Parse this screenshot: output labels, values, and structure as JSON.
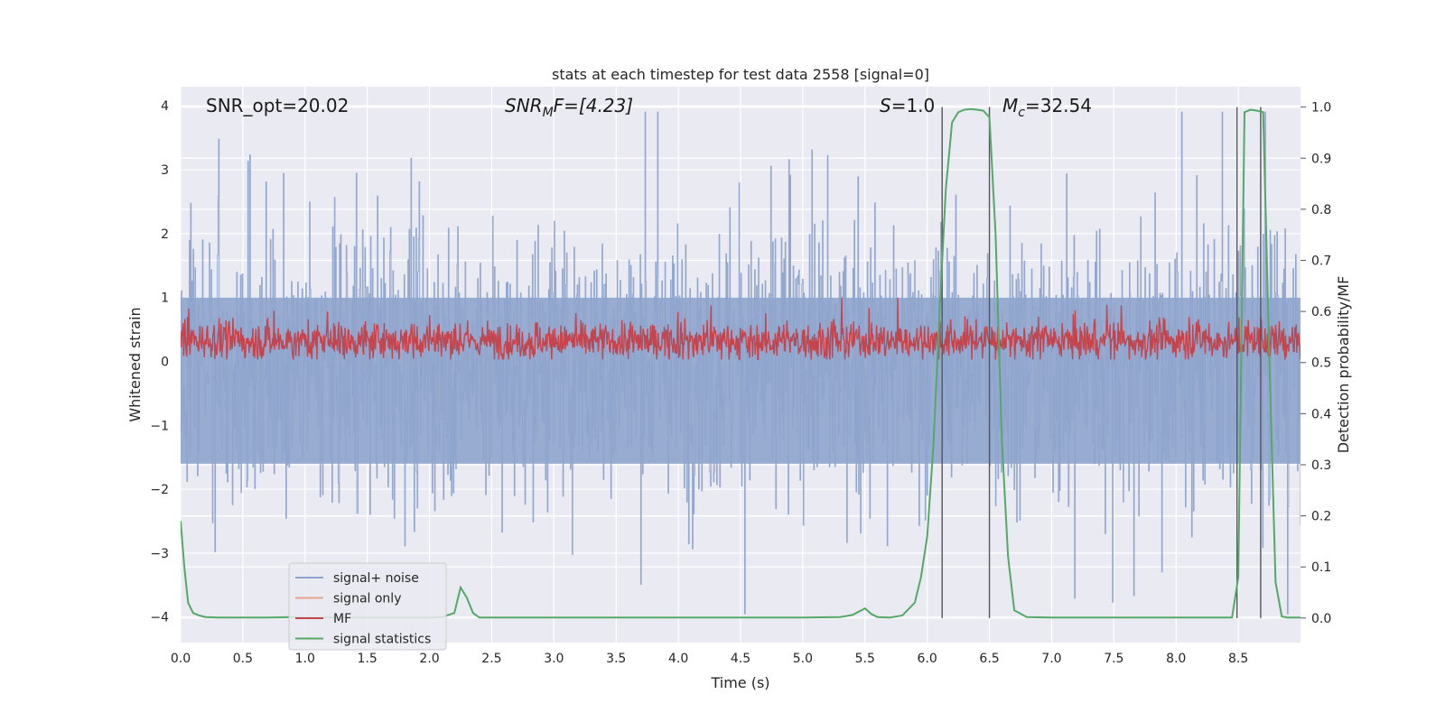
{
  "chart_data": {
    "type": "line",
    "title": "stats at each timestep for test data 2558 [signal=0]",
    "xlabel": "Time (s)",
    "ylabel_left": "Whitened strain",
    "ylabel_right": "Detection probability/MF",
    "xlim": [
      0,
      9
    ],
    "ylim_left": [
      -4.4,
      4.3
    ],
    "ylim_right": [
      -0.048,
      1.04
    ],
    "x_ticks": [
      "0.0",
      "0.5",
      "1.0",
      "1.5",
      "2.0",
      "2.5",
      "3.0",
      "3.5",
      "4.0",
      "4.5",
      "5.0",
      "5.5",
      "6.0",
      "6.5",
      "7.0",
      "7.5",
      "8.0",
      "8.5"
    ],
    "y_ticks_left": [
      "4",
      "3",
      "2",
      "1",
      "0",
      "−1",
      "−2",
      "−3",
      "−4"
    ],
    "y_ticks_right": [
      "1.0",
      "0.9",
      "0.8",
      "0.7",
      "0.6",
      "0.5",
      "0.4",
      "0.3",
      "0.2",
      "0.1",
      "0.0"
    ],
    "grid": true,
    "legend_position": "lower-left",
    "annotations": {
      "snr_opt": "SNR_opt=20.02",
      "snr_mf_main": "SNR",
      "snr_mf_sub": "M",
      "snr_mf_rest": "F=[4.23]",
      "s_main": "S",
      "s_rest": "=1.0",
      "mc_main": "M",
      "mc_sub": "c",
      "mc_rest": "=32.54"
    },
    "vertical_markers_x": [
      6.12,
      6.5,
      8.49,
      8.68
    ],
    "series": [
      {
        "name": "signal+ noise",
        "color": "#8fa4cc",
        "axis": "left",
        "amplitude_range": [
          -4.0,
          4.0
        ]
      },
      {
        "name": "signal only",
        "color": "#e8a28a",
        "axis": "left"
      },
      {
        "name": "MF",
        "color": "#c4454d",
        "axis": "left",
        "amplitude_range": [
          0.0,
          1.0
        ]
      },
      {
        "name": "signal statistics",
        "color": "#55a868",
        "axis": "right",
        "x": [
          0.0,
          0.03,
          0.06,
          0.1,
          0.15,
          0.2,
          0.3,
          0.5,
          0.7,
          0.9,
          1.0,
          1.5,
          2.0,
          2.1,
          2.2,
          2.25,
          2.3,
          2.35,
          2.4,
          2.5,
          3.0,
          4.0,
          5.0,
          5.3,
          5.4,
          5.5,
          5.55,
          5.6,
          5.7,
          5.8,
          5.9,
          5.95,
          6.0,
          6.05,
          6.1,
          6.15,
          6.2,
          6.25,
          6.3,
          6.35,
          6.4,
          6.45,
          6.5,
          6.55,
          6.6,
          6.65,
          6.7,
          6.8,
          7.0,
          8.0,
          8.45,
          8.5,
          8.55,
          8.6,
          8.65,
          8.7,
          8.75,
          8.8,
          8.85,
          8.9,
          9.0
        ],
        "values": [
          0.19,
          0.1,
          0.03,
          0.01,
          0.005,
          0.002,
          0.001,
          0.001,
          0.001,
          0.002,
          0.001,
          0.001,
          0.001,
          0.002,
          0.01,
          0.06,
          0.04,
          0.01,
          0.001,
          0.001,
          0.001,
          0.001,
          0.001,
          0.002,
          0.006,
          0.019,
          0.008,
          0.002,
          0.001,
          0.005,
          0.03,
          0.08,
          0.16,
          0.34,
          0.6,
          0.84,
          0.97,
          0.99,
          0.995,
          0.996,
          0.995,
          0.993,
          0.98,
          0.75,
          0.35,
          0.12,
          0.015,
          0.002,
          0.001,
          0.001,
          0.001,
          0.08,
          0.99,
          0.995,
          0.993,
          0.99,
          0.5,
          0.07,
          0.003,
          0.001,
          0.001
        ]
      }
    ]
  }
}
